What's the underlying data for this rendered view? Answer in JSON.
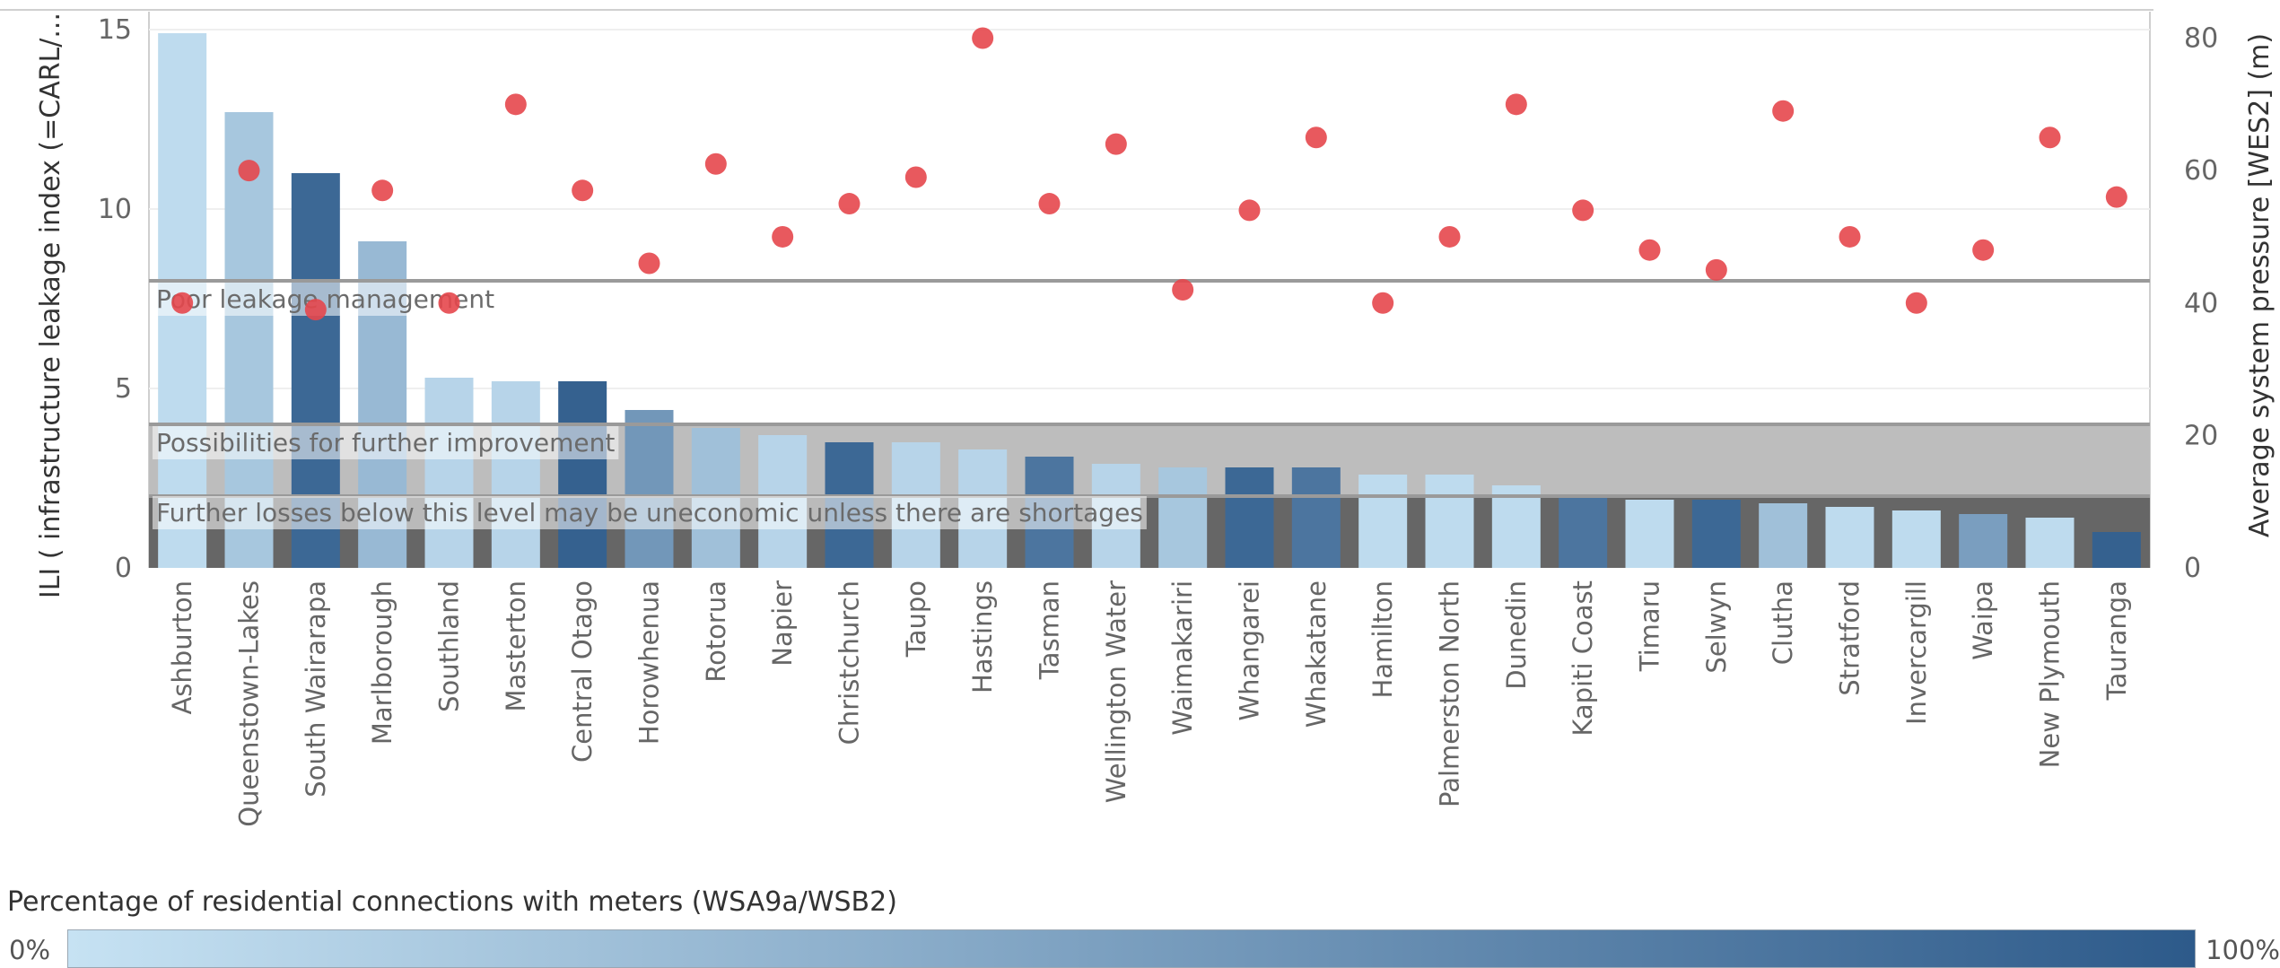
{
  "chart_data": {
    "type": "bar",
    "title": "",
    "ylabel": "ILI ( infrastructure leakage index (=CARL/...",
    "y2label": "Average system pressure [WES2] (m)",
    "ylim": [
      0,
      15.5
    ],
    "y2lim": [
      0,
      84
    ],
    "yticks": [
      "0",
      "5",
      "10",
      "15"
    ],
    "y2ticks": [
      "0",
      "20",
      "40",
      "60",
      "80"
    ],
    "grid": true,
    "categories": [
      "Ashburton",
      "Queenstown-Lakes",
      "South Wairarapa",
      "Marlborough",
      "Southland",
      "Masterton",
      "Central Otago",
      "Horowhenua",
      "Rotorua",
      "Napier",
      "Christchurch",
      "Taupo",
      "Hastings",
      "Tasman",
      "Wellington Water",
      "Waimakariri",
      "Whangarei",
      "Whakatane",
      "Hamilton",
      "Palmerston North",
      "Dunedin",
      "Kapiti Coast",
      "Timaru",
      "Selwyn",
      "Clutha",
      "Stratford",
      "Invercargill",
      "Waipa",
      "New Plymouth",
      "Tauranga"
    ],
    "series": [
      {
        "name": "ILI",
        "kind": "bar",
        "values": [
          14.9,
          12.7,
          11.0,
          9.1,
          5.3,
          5.2,
          5.2,
          4.4,
          3.9,
          3.7,
          3.5,
          3.5,
          3.3,
          3.1,
          2.9,
          2.8,
          2.8,
          2.8,
          2.6,
          2.6,
          2.3,
          2.0,
          1.9,
          1.9,
          1.8,
          1.7,
          1.6,
          1.5,
          1.4,
          1.0
        ]
      },
      {
        "name": "Average system pressure",
        "kind": "scatter",
        "axis": "right",
        "values": [
          40,
          60,
          39,
          57,
          40,
          70,
          57,
          46,
          61,
          50,
          55,
          59,
          80,
          55,
          64,
          42,
          54,
          65,
          40,
          50,
          70,
          54,
          48,
          45,
          69,
          50,
          40,
          48,
          65,
          56
        ]
      },
      {
        "name": "Percentage of residential connections with meters",
        "kind": "color",
        "values": [
          5,
          20,
          90,
          30,
          10,
          10,
          95,
          55,
          25,
          10,
          90,
          10,
          10,
          80,
          10,
          20,
          90,
          80,
          5,
          5,
          5,
          80,
          5,
          90,
          25,
          5,
          5,
          50,
          5,
          95
        ]
      }
    ],
    "reference_lines": [
      {
        "value": 8,
        "label": "Poor leakage management"
      },
      {
        "value": 4,
        "label": "Possibilities for further improvement"
      },
      {
        "value": 2,
        "label": "Further losses below this level may be uneconomic unless there are shortages"
      }
    ],
    "colors": {
      "bar_low": "#c6e2f3",
      "bar_high": "#2d5a8a",
      "point": "#e5474d",
      "band_dark": "#666666",
      "band_light": "#bdbdbd"
    }
  },
  "legend": {
    "title": "Percentage of residential connections with meters (WSA9a/WSB2)",
    "min_label": "0%",
    "max_label": "100%"
  }
}
